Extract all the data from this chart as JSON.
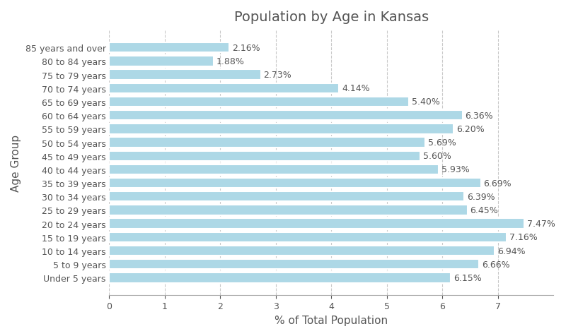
{
  "title": "Population by Age in Kansas",
  "xlabel": "% of Total Population",
  "ylabel": "Age Group",
  "categories": [
    "Under 5 years",
    "5 to 9 years",
    "10 to 14 years",
    "15 to 19 years",
    "20 to 24 years",
    "25 to 29 years",
    "30 to 34 years",
    "35 to 39 years",
    "40 to 44 years",
    "45 to 49 years",
    "50 to 54 years",
    "55 to 59 years",
    "60 to 64 years",
    "65 to 69 years",
    "70 to 74 years",
    "75 to 79 years",
    "80 to 84 years",
    "85 years and over"
  ],
  "values": [
    6.15,
    6.66,
    6.94,
    7.16,
    7.47,
    6.45,
    6.39,
    6.69,
    5.93,
    5.6,
    5.69,
    6.2,
    6.36,
    5.4,
    4.14,
    2.73,
    1.88,
    2.16
  ],
  "bar_color": "#ADD8E6",
  "bar_edge_color": "white",
  "label_color": "#555555",
  "title_fontsize": 14,
  "axis_label_fontsize": 11,
  "tick_fontsize": 9,
  "value_fontsize": 9,
  "xlim": [
    0,
    8
  ],
  "xticks": [
    0,
    1,
    2,
    3,
    4,
    5,
    6,
    7
  ],
  "background_color": "#ffffff",
  "grid_color": "#bbbbbb",
  "grid_linestyle": "--",
  "grid_alpha": 0.8
}
